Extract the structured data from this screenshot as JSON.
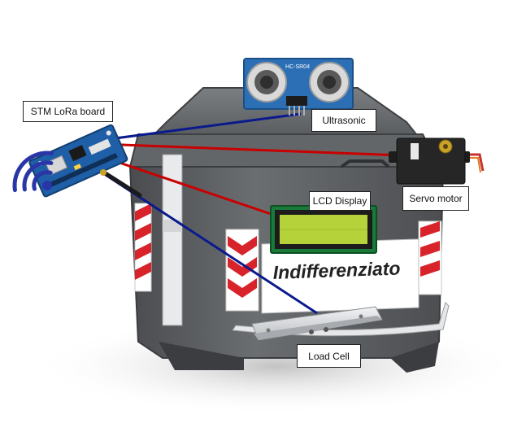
{
  "labels": {
    "board": "STM LoRa board",
    "ultrasonic": "Ultrasonic",
    "servo": "Servo motor",
    "lcd": "LCD Display",
    "load_cell": "Load Cell"
  },
  "bin": {
    "text": "Indifferenziato"
  },
  "sensor": {
    "model": "HC-SR04"
  },
  "icons": {
    "wireless": "wifi-signal-icon"
  },
  "colors": {
    "wire_blue": "#0a1a8c",
    "wire_red": "#c80000",
    "bin_body": "#5c5f62",
    "lcd_screen": "#b6d23a",
    "pcb_blue": "#1f5fa8",
    "wifi": "#2a35a8"
  }
}
